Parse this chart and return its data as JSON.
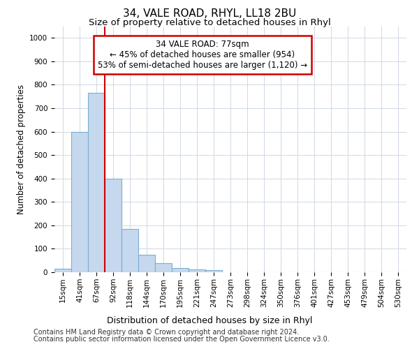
{
  "title": "34, VALE ROAD, RHYL, LL18 2BU",
  "subtitle": "Size of property relative to detached houses in Rhyl",
  "xlabel": "Distribution of detached houses by size in Rhyl",
  "ylabel": "Number of detached properties",
  "bar_labels": [
    "15sqm",
    "41sqm",
    "67sqm",
    "92sqm",
    "118sqm",
    "144sqm",
    "170sqm",
    "195sqm",
    "221sqm",
    "247sqm",
    "273sqm",
    "298sqm",
    "324sqm",
    "350sqm",
    "376sqm",
    "401sqm",
    "427sqm",
    "453sqm",
    "479sqm",
    "504sqm",
    "530sqm"
  ],
  "bar_values": [
    15,
    600,
    765,
    400,
    185,
    75,
    40,
    17,
    12,
    10,
    0,
    0,
    0,
    0,
    0,
    0,
    0,
    0,
    0,
    0,
    0
  ],
  "bar_color": "#c5d8ee",
  "bar_edge_color": "#7aafd4",
  "property_sqm": 77,
  "annotation_line1": "34 VALE ROAD: 77sqm",
  "annotation_line2": "← 45% of detached houses are smaller (954)",
  "annotation_line3": "53% of semi-detached houses are larger (1,120) →",
  "annotation_box_color": "#cc0000",
  "ylim": [
    0,
    1050
  ],
  "yticks": [
    0,
    100,
    200,
    300,
    400,
    500,
    600,
    700,
    800,
    900,
    1000
  ],
  "footer_line1": "Contains HM Land Registry data © Crown copyright and database right 2024.",
  "footer_line2": "Contains public sector information licensed under the Open Government Licence v3.0.",
  "bg_color": "#ffffff",
  "grid_color": "#d0d8e4",
  "title_fontsize": 11,
  "subtitle_fontsize": 9.5,
  "ylabel_fontsize": 8.5,
  "xlabel_fontsize": 9,
  "tick_fontsize": 7.5,
  "footer_fontsize": 7,
  "annot_fontsize": 8.5
}
